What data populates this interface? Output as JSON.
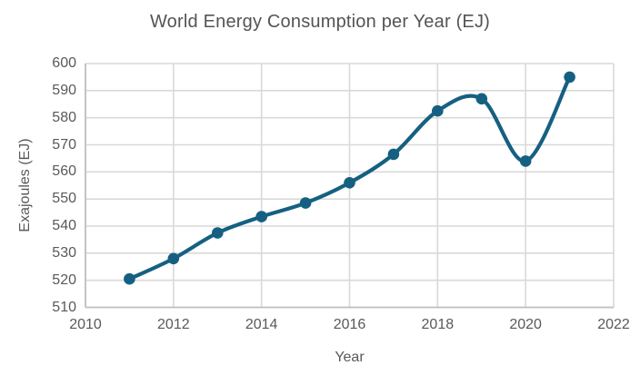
{
  "chart_data": {
    "type": "line",
    "title": "World Energy Consumption per Year (EJ)",
    "xlabel": "Year",
    "ylabel": "Exajoules (EJ)",
    "x": [
      2011,
      2012,
      2013,
      2014,
      2015,
      2016,
      2017,
      2018,
      2019,
      2020,
      2021
    ],
    "values": [
      520.5,
      528,
      537.5,
      543.5,
      548.5,
      556,
      566.5,
      582.5,
      587,
      564,
      595
    ],
    "xlim": [
      2010,
      2022
    ],
    "ylim": [
      510,
      600
    ],
    "x_ticks": [
      2010,
      2012,
      2014,
      2016,
      2018,
      2020,
      2022
    ],
    "y_ticks": [
      510,
      520,
      530,
      540,
      550,
      560,
      570,
      580,
      590,
      600
    ],
    "grid": true,
    "legend": false,
    "smooth_line": true,
    "marker": "circle",
    "colors": {
      "line": "#156082",
      "marker": "#156082",
      "grid": "#D9D9D9",
      "axis_line": "#C0C0C0",
      "tick_text": "#595959",
      "title_text": "#545454",
      "background": "#FFFFFF"
    }
  }
}
